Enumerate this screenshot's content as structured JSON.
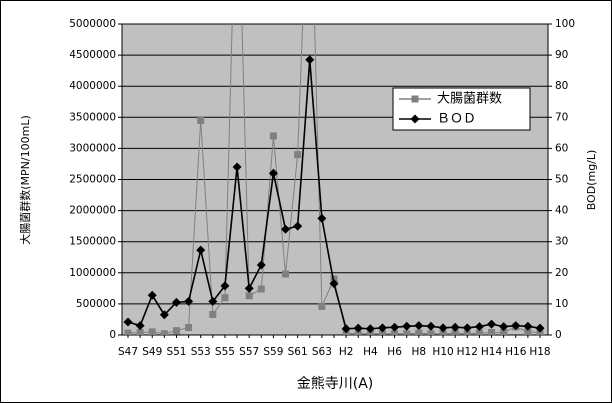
{
  "chart_data": {
    "type": "line",
    "categories": [
      "S47",
      null,
      "S49",
      null,
      "S51",
      null,
      "S53",
      null,
      "S55",
      null,
      "S57",
      null,
      "S59",
      null,
      "S61",
      null,
      "S63",
      null,
      "H2",
      null,
      "H4",
      null,
      "H6",
      null,
      "H8",
      null,
      "H10",
      null,
      "H12",
      null,
      "H14",
      null,
      "H16",
      null,
      "H18"
    ],
    "series": [
      {
        "name": "大腸菌群数",
        "color": "#808080",
        "axis": "y",
        "marker": "square",
        "values": [
          30000,
          40000,
          50000,
          20000,
          70000,
          120000,
          3450000,
          330000,
          600000,
          8000000,
          630000,
          740000,
          3200000,
          980000,
          2900000,
          8000000,
          460000,
          900000,
          30000,
          20000,
          20000,
          20000,
          20000,
          20000,
          30000,
          20000,
          20000,
          30000,
          20000,
          30000,
          40000,
          40000,
          130000,
          50000,
          40000
        ]
      },
      {
        "name": "ＢＯＤ",
        "color": "#000000",
        "axis": "y2",
        "marker": "diamond",
        "values": [
          4.2,
          3,
          12.8,
          6.5,
          10.5,
          10.8,
          27.3,
          10.8,
          15.8,
          54,
          15,
          22.5,
          52,
          34,
          35,
          88.5,
          37.5,
          16.5,
          2,
          2.2,
          2,
          2.3,
          2.5,
          2.8,
          3,
          2.8,
          2.3,
          2.5,
          2.3,
          2.7,
          3.5,
          2.7,
          3,
          2.8,
          2.2
        ]
      }
    ],
    "x_label": "金熊寺川(A)",
    "y_label": "大腸菌群数(MPN/100mL)",
    "y2_label": "BOD(mg/L)",
    "ylim": [
      0,
      5000000
    ],
    "yticks": [
      0,
      500000,
      1000000,
      1500000,
      2000000,
      2500000,
      3000000,
      3500000,
      4000000,
      4500000,
      5000000
    ],
    "y2lim": [
      0,
      100
    ],
    "y2ticks": [
      0,
      10,
      20,
      30,
      40,
      50,
      60,
      70,
      80,
      90,
      100
    ],
    "grid": true,
    "legend": "upper right",
    "background": "#c0c0c0"
  }
}
